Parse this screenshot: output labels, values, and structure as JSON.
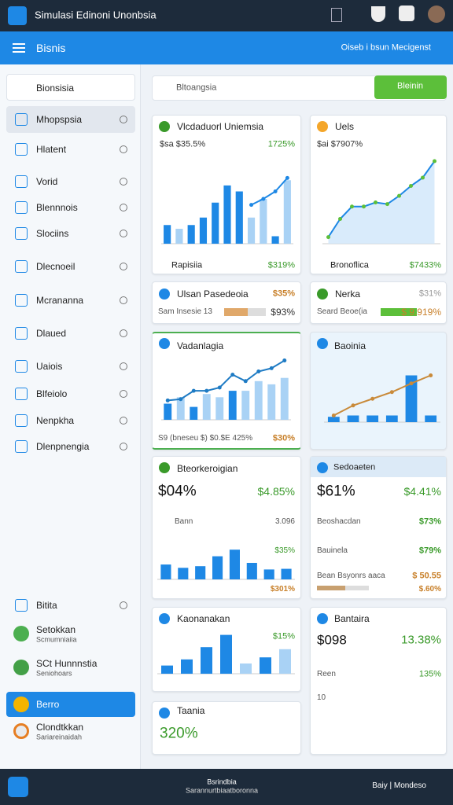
{
  "header": {
    "title": "Simulasi Edinoni Unonbsia"
  },
  "toolbar": {
    "title": "Bisnis",
    "breadcrumb": "Oiseb i bsun  Mecigenst"
  },
  "sidebar": {
    "dropdown": "Bionsisia",
    "items": [
      "Mhopspsia",
      "Hlatent",
      "Vorid",
      "Blennnois",
      "Slociins",
      "Dlecnoeil",
      "Mcrananna",
      "Dlaued",
      "Uaiois",
      "Blfeiolo",
      "Nenpkha",
      "Dlenpnengia",
      "Bitita"
    ],
    "bottom_items": [
      {
        "label": "Setokkan",
        "sublabel": "Scmumniaiia"
      },
      {
        "label": "SCt Hunnnstia",
        "sublabel": "Seniohoars"
      },
      {
        "label": "Berro"
      },
      {
        "label": "Clondtkkan",
        "sublabel": "Sariareinaidah"
      }
    ]
  },
  "search": {
    "placeholder": "Bltoangsia",
    "button": "Bleinin"
  },
  "cards": [
    {
      "title": "Vlcdaduorl Uniemsia",
      "value": "$sa $35.5%",
      "change": "1725%",
      "footer_label": "Rapisiia",
      "footer_value": "$319%",
      "chart": {
        "ylim": [
          0,
          100
        ],
        "bars": [
          25,
          20,
          25,
          35,
          55,
          78,
          70,
          35,
          60,
          10,
          85
        ],
        "bar_colors": [
          "#1e88e5",
          "#a9d2f5",
          "#1e88e5",
          "#1e88e5",
          "#1e88e5",
          "#1e88e5",
          "#1e88e5",
          "#a9d2f5",
          "#a9d2f5",
          "#1e88e5",
          "#a9d2f5"
        ],
        "line": [
          null,
          null,
          null,
          null,
          null,
          null,
          null,
          52,
          60,
          70,
          88
        ],
        "line_color": "#1e88e5"
      }
    },
    {
      "title": "Uels",
      "value": "$ai $7907%",
      "footer_label": "Bronoflica",
      "footer_value": "$7433%",
      "chart": {
        "ylim": [
          0,
          100
        ],
        "line": [
          8,
          30,
          45,
          45,
          50,
          48,
          58,
          70,
          80,
          100
        ],
        "line_color": "#1e88e5",
        "area": true
      }
    },
    {
      "title": "Ulsan Pasedeoia",
      "change": "$35%",
      "footer_label": "Sam Insesie 13",
      "footer_value": "$93%"
    },
    {
      "title": "Nerka",
      "change": "$31%",
      "footer_label": "Seard Beoe(ia",
      "footer_value": "$ 9.919%"
    },
    {
      "title": "Vadanlagia",
      "footer_label": "S9 (bneseu $) $0.$E 425%",
      "footer_value": "$30%",
      "chart": {
        "ylim": [
          0,
          100
        ],
        "bars": [
          25,
          35,
          20,
          40,
          35,
          45,
          45,
          60,
          55,
          65
        ],
        "bar_colors": [
          "#1e88e5",
          "#a9d2f5",
          "#1e88e5",
          "#a9d2f5",
          "#a9d2f5",
          "#1e88e5",
          "#a9d2f5",
          "#a9d2f5",
          "#a9d2f5",
          "#a9d2f5"
        ],
        "line": [
          30,
          32,
          45,
          45,
          50,
          70,
          60,
          75,
          80,
          92
        ],
        "line_color": "#1e7bc4"
      }
    },
    {
      "title": "Baoinia",
      "chart": {
        "ylim": [
          0,
          100
        ],
        "bars": [
          8,
          10,
          10,
          10,
          70,
          10
        ],
        "bar_colors": [
          "#1e88e5",
          "#1e88e5",
          "#1e88e5",
          "#1e88e5",
          "#1e88e5",
          "#1e88e5"
        ],
        "line": [
          10,
          25,
          35,
          45,
          58,
          70
        ],
        "line_color": "#c98a3a"
      }
    },
    {
      "title": "Bteorkeroigian",
      "value": "$04%",
      "change": "$4.85%",
      "row_label": "Bann",
      "row_value": "3.096",
      "chart_value": "$35%",
      "footer_value": "$301%",
      "chart": {
        "ylim": [
          0,
          100
        ],
        "bars": [
          45,
          35,
          40,
          70,
          90,
          50,
          30,
          32
        ],
        "bar_colors": [
          "#1e88e5",
          "#1e88e5",
          "#1e88e5",
          "#1e88e5",
          "#1e88e5",
          "#1e88e5",
          "#1e88e5",
          "#1e88e5"
        ]
      }
    },
    {
      "title": "Sedoaeten",
      "value": "$61%",
      "change": "$4.41%",
      "rows": [
        [
          "Beoshacdan",
          "$73%"
        ],
        [
          "Bauinela",
          "$79%"
        ],
        [
          "Bean Bsyonrs aaca",
          "$ 50.55"
        ]
      ],
      "footer_value": "$.60%"
    },
    {
      "title": "Kaonanakan",
      "change": "$15%",
      "chart": {
        "ylim": [
          0,
          100
        ],
        "bars": [
          20,
          35,
          65,
          95,
          25,
          40,
          60
        ],
        "bar_colors": [
          "#1e88e5",
          "#1e88e5",
          "#1e88e5",
          "#1e88e5",
          "#a9d2f5",
          "#1e88e5",
          "#a9d2f5"
        ]
      }
    },
    {
      "title": "Bantaira",
      "value": "$098",
      "change": "13.38%",
      "row_label": "Reen",
      "row_value": "135%",
      "note": "10"
    },
    {
      "title": "Taania",
      "value": "320%"
    }
  ],
  "footer": {
    "title": "Bsrindbia",
    "subtitle": "Sarannurtbiaatboronna",
    "right": "Baiy | Mondeso"
  }
}
